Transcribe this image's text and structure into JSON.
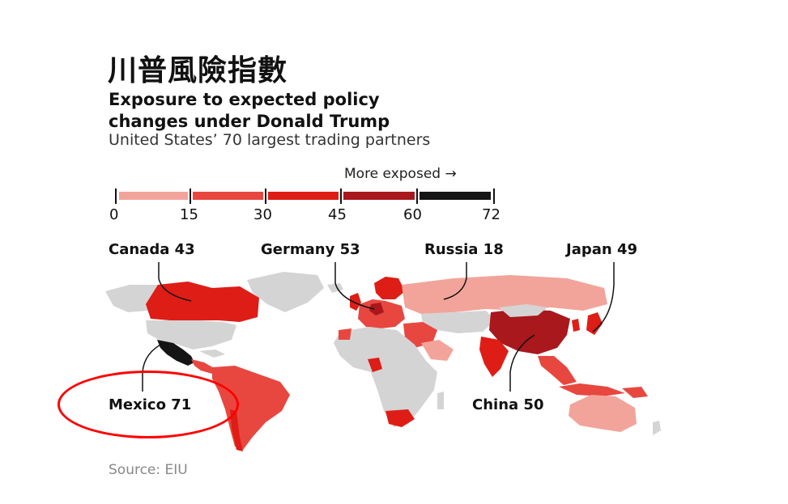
{
  "title_zh": "川普風險指數",
  "headline": "Exposure to expected policy changes under Donald Trump",
  "subhead": "United States’ 70 largest trading partners",
  "legend": {
    "direction_label": "More exposed →",
    "ticks": [
      "0",
      "15",
      "30",
      "45",
      "60",
      "72"
    ],
    "bins": [
      {
        "range": [
          0,
          15
        ],
        "color": "#f2a49a"
      },
      {
        "range": [
          15,
          30
        ],
        "color": "#e8473f"
      },
      {
        "range": [
          30,
          45
        ],
        "color": "#de1d16"
      },
      {
        "range": [
          45,
          60
        ],
        "color": "#a8181c"
      },
      {
        "range": [
          60,
          72
        ],
        "color": "#151515"
      }
    ]
  },
  "callouts": {
    "canada": "Canada 43",
    "germany": "Germany 53",
    "russia": "Russia 18",
    "japan": "Japan 49",
    "mexico": "Mexico 71",
    "china": "China 50"
  },
  "colors": {
    "no_data": "#d4d4d4",
    "highlight": "#ff0000"
  },
  "source": "Source: EIU"
}
